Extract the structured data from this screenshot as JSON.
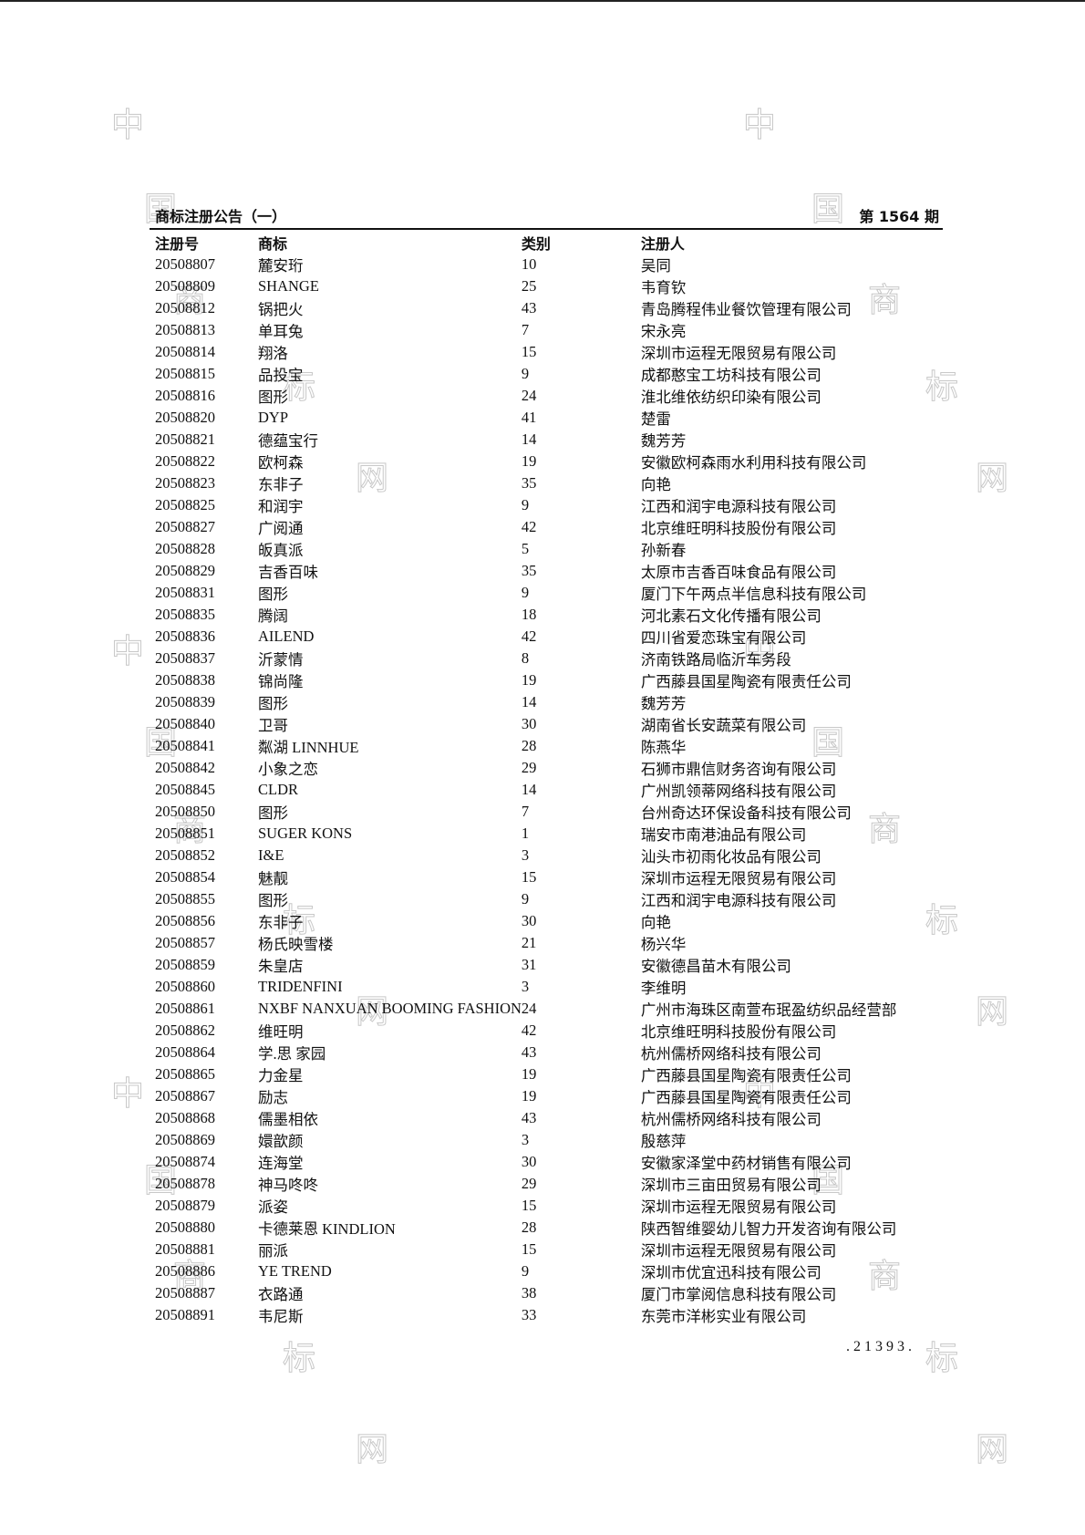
{
  "header": {
    "title": "商标注册公告（一）",
    "issue": "第 1564 期"
  },
  "columns": [
    "注册号",
    "商标",
    "类别",
    "注册人"
  ],
  "rows": [
    [
      "20508807",
      "麓安珩",
      "10",
      "吴同"
    ],
    [
      "20508809",
      "SHANGE",
      "25",
      "韦育钦"
    ],
    [
      "20508812",
      "锅把火",
      "43",
      "青岛腾程伟业餐饮管理有限公司"
    ],
    [
      "20508813",
      "单耳兔",
      "7",
      "宋永亮"
    ],
    [
      "20508814",
      "翔洛",
      "15",
      "深圳市运程无限贸易有限公司"
    ],
    [
      "20508815",
      "品投宝",
      "9",
      "成都憨宝工坊科技有限公司"
    ],
    [
      "20508816",
      "图形",
      "24",
      "淮北维依纺织印染有限公司"
    ],
    [
      "20508820",
      "DYP",
      "41",
      "楚雷"
    ],
    [
      "20508821",
      "德蕴宝行",
      "14",
      "魏芳芳"
    ],
    [
      "20508822",
      "欧柯森",
      "19",
      "安徽欧柯森雨水利用科技有限公司"
    ],
    [
      "20508823",
      "东非子",
      "35",
      "向艳"
    ],
    [
      "20508825",
      "和润宇",
      "9",
      "江西和润宇电源科技有限公司"
    ],
    [
      "20508827",
      "广阅通",
      "42",
      "北京维旺明科技股份有限公司"
    ],
    [
      "20508828",
      "皈真派",
      "5",
      "孙新春"
    ],
    [
      "20508829",
      "吉香百味",
      "35",
      "太原市吉香百味食品有限公司"
    ],
    [
      "20508831",
      "图形",
      "9",
      "厦门下午两点半信息科技有限公司"
    ],
    [
      "20508835",
      "腾阔",
      "18",
      "河北素石文化传播有限公司"
    ],
    [
      "20508836",
      "AILEND",
      "42",
      "四川省爱恋珠宝有限公司"
    ],
    [
      "20508837",
      "沂蒙情",
      "8",
      "济南铁路局临沂车务段"
    ],
    [
      "20508838",
      "锦尚隆",
      "19",
      "广西藤县国星陶瓷有限责任公司"
    ],
    [
      "20508839",
      "图形",
      "14",
      "魏芳芳"
    ],
    [
      "20508840",
      "卫哥",
      "30",
      "湖南省长安蔬菜有限公司"
    ],
    [
      "20508841",
      "粼湖 LINNHUE",
      "28",
      "陈燕华"
    ],
    [
      "20508842",
      "小象之恋",
      "29",
      "石狮市鼎信财务咨询有限公司"
    ],
    [
      "20508845",
      "CLDR",
      "14",
      "广州凯领蒂网络科技有限公司"
    ],
    [
      "20508850",
      "图形",
      "7",
      "台州奇达环保设备科技有限公司"
    ],
    [
      "20508851",
      "SUGER KONS",
      "1",
      "瑞安市南港油品有限公司"
    ],
    [
      "20508852",
      "I&E",
      "3",
      "汕头市初雨化妆品有限公司"
    ],
    [
      "20508854",
      "魅靓",
      "15",
      "深圳市运程无限贸易有限公司"
    ],
    [
      "20508855",
      "图形",
      "9",
      "江西和润宇电源科技有限公司"
    ],
    [
      "20508856",
      "东非子",
      "30",
      "向艳"
    ],
    [
      "20508857",
      "杨氏映雪楼",
      "21",
      "杨兴华"
    ],
    [
      "20508859",
      "朱皇店",
      "31",
      "安徽德昌苗木有限公司"
    ],
    [
      "20508860",
      "TRIDENFINI",
      "3",
      "李维明"
    ],
    [
      "20508861",
      "NXBF NANXUAN BOOMING FASHION",
      "24",
      "广州市海珠区南萱布珉盈纺织品经营部"
    ],
    [
      "20508862",
      "维旺明",
      "42",
      "北京维旺明科技股份有限公司"
    ],
    [
      "20508864",
      "学.思 家园",
      "43",
      "杭州儒桥网络科技有限公司"
    ],
    [
      "20508865",
      "力金星",
      "19",
      "广西藤县国星陶瓷有限责任公司"
    ],
    [
      "20508867",
      "励志",
      "19",
      "广西藤县国星陶瓷有限责任公司"
    ],
    [
      "20508868",
      "儒墨相依",
      "43",
      "杭州儒桥网络科技有限公司"
    ],
    [
      "20508869",
      "嬛歆颜",
      "3",
      "殷慈萍"
    ],
    [
      "20508874",
      "连海堂",
      "30",
      "安徽家泽堂中药材销售有限公司"
    ],
    [
      "20508878",
      "神马咚咚",
      "29",
      "深圳市三亩田贸易有限公司"
    ],
    [
      "20508879",
      "派姿",
      "15",
      "深圳市运程无限贸易有限公司"
    ],
    [
      "20508880",
      "卡德莱恩 KINDLION",
      "28",
      "陕西智维婴幼儿智力开发咨询有限公司"
    ],
    [
      "20508881",
      "丽派",
      "15",
      "深圳市运程无限贸易有限公司"
    ],
    [
      "20508886",
      "YE TREND",
      "9",
      "深圳市优宜迅科技有限公司"
    ],
    [
      "20508887",
      "衣路通",
      "38",
      "厦门市掌阅信息科技有限公司"
    ],
    [
      "20508891",
      "韦尼斯",
      "33",
      "东莞市洋彬实业有限公司"
    ]
  ],
  "footer": {
    "page_number": ".21393."
  },
  "watermark": [
    "中",
    "国",
    "商",
    "标",
    "网"
  ]
}
